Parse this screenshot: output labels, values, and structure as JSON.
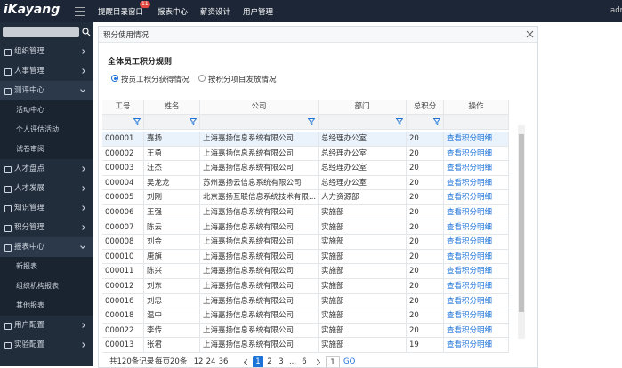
{
  "header": {
    "logo": "iKayang",
    "nav": [
      {
        "label": "提醒目录窗口",
        "badge": "11"
      },
      {
        "label": "报表中心"
      },
      {
        "label": "薪资设计"
      },
      {
        "label": "用户管理"
      }
    ],
    "user": "admin"
  },
  "sidebar": {
    "items": [
      {
        "label": "组织管理"
      },
      {
        "label": "人事管理"
      },
      {
        "label": "测评中心",
        "children": [
          "活动中心",
          "个人评估活动",
          "试卷审阅"
        ]
      },
      {
        "label": "人才盘点"
      },
      {
        "label": "人才发展"
      },
      {
        "label": "知识管理"
      },
      {
        "label": "积分管理"
      },
      {
        "label": "报表中心",
        "children": [
          "新报表",
          "组织机构报表",
          "其他报表"
        ]
      },
      {
        "label": "用户配置"
      },
      {
        "label": "实验配置"
      }
    ]
  },
  "dialog": {
    "title": "积分使用情况",
    "section_title": "全体员工积分规则",
    "options": [
      "按员工积分获得情况",
      "按积分项目发放情况"
    ],
    "table": {
      "columns": [
        "工号",
        "姓名",
        "公司",
        "部门",
        "总积分",
        "操作"
      ],
      "rows": [
        [
          "000001",
          "嘉扬",
          "上海嘉扬信息系统有限公司",
          "总经理办公室",
          "20",
          "查看积分明细"
        ],
        [
          "000002",
          "王勇",
          "上海嘉扬信息系统有限公司",
          "总经理办公室",
          "20",
          "查看积分明细"
        ],
        [
          "000003",
          "汪杰",
          "上海嘉扬信息系统有限公司",
          "总经理办公室",
          "20",
          "查看积分明细"
        ],
        [
          "000004",
          "吴龙龙",
          "苏州嘉扬云信息系统有限公司",
          "总经理办公室",
          "20",
          "查看积分明细"
        ],
        [
          "000005",
          "刘刚",
          "北京嘉扬互联信息系统技术有限...",
          "人力资源部",
          "20",
          "查看积分明细"
        ],
        [
          "000006",
          "王强",
          "上海嘉扬信息系统有限公司",
          "实施部",
          "20",
          "查看积分明细"
        ],
        [
          "000007",
          "陈云",
          "上海嘉扬信息系统有限公司",
          "实施部",
          "20",
          "查看积分明细"
        ],
        [
          "000008",
          "刘金",
          "上海嘉扬信息系统有限公司",
          "实施部",
          "20",
          "查看积分明细"
        ],
        [
          "000010",
          "唐旗",
          "上海嘉扬信息系统有限公司",
          "实施部",
          "20",
          "查看积分明细"
        ],
        [
          "000011",
          "陈兴",
          "上海嘉扬信息系统有限公司",
          "实施部",
          "20",
          "查看积分明细"
        ],
        [
          "000012",
          "刘东",
          "上海嘉扬信息系统有限公司",
          "实施部",
          "20",
          "查看积分明细"
        ],
        [
          "000016",
          "刘忠",
          "上海嘉扬信息系统有限公司",
          "实施部",
          "20",
          "查看积分明细"
        ],
        [
          "000018",
          "温中",
          "上海嘉扬信息系统有限公司",
          "实施部",
          "20",
          "查看积分明细"
        ],
        [
          "000022",
          "李传",
          "上海嘉扬信息系统有限公司",
          "实施部",
          "20",
          "查看积分明细"
        ],
        [
          "000013",
          "张君",
          "上海嘉扬信息系统有限公司",
          "实施部",
          "19",
          "查看积分明细"
        ]
      ]
    },
    "pager": {
      "total": "共120条记录",
      "page_size": "每页20条",
      "sizes": [
        "12",
        "24",
        "36"
      ],
      "pages": [
        "1",
        "2",
        "3",
        "...",
        "6"
      ],
      "jump": "1",
      "go": "GO"
    }
  }
}
